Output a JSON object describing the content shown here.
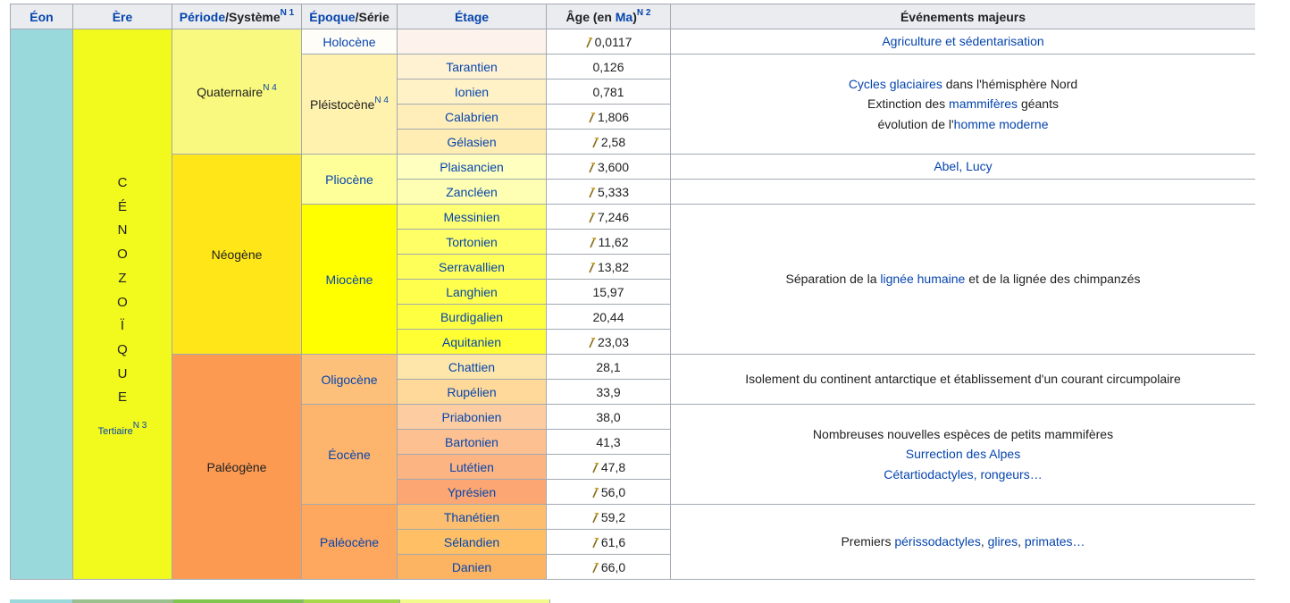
{
  "header": [
    [
      {
        "text": "Éon",
        "link": true
      }
    ],
    [
      {
        "text": "Ère",
        "link": true
      }
    ],
    [
      {
        "text": "Période",
        "link": true
      },
      {
        "text": "/Système"
      },
      {
        "text": "N 1",
        "sup": true,
        "link": true
      }
    ],
    [
      {
        "text": "Époque",
        "link": true
      },
      {
        "text": "/Série"
      }
    ],
    [
      {
        "text": "Étage",
        "link": true
      }
    ],
    [
      {
        "text": "Âge (en "
      },
      {
        "text": "Ma",
        "link": true
      },
      {
        "text": ")"
      },
      {
        "text": "N 2",
        "sup": true,
        "link": true
      }
    ],
    [
      {
        "text": "Événements majeurs"
      }
    ]
  ],
  "era": {
    "name": "CÉNOZOÏQUE",
    "note": "Tertiaire",
    "note_ref": "N 3",
    "color": "#f2f91d"
  },
  "periods": [
    {
      "name": "Quaternaire",
      "ref": "N 4",
      "rows": 5,
      "color": "#f9f97f"
    },
    {
      "name": "Néogène",
      "rows": 8,
      "color": "#ffe619"
    },
    {
      "name": "Paléogène",
      "rows": 9,
      "color": "#fd9a52"
    }
  ],
  "epochs": [
    {
      "name": "Holocène",
      "rows": 1,
      "color": "#fefdf8",
      "link": true
    },
    {
      "name": "Pléistocène",
      "ref": "N 4",
      "rows": 4,
      "color": "#fff2ae"
    },
    {
      "name": "Pliocène",
      "rows": 2,
      "color": "#ffff99",
      "link": true
    },
    {
      "name": "Miocène",
      "rows": 6,
      "color": "#ffff00",
      "link": true
    },
    {
      "name": "Oligocène",
      "rows": 2,
      "color": "#fdc07a",
      "link": true
    },
    {
      "name": "Éocène",
      "rows": 4,
      "color": "#fdb46c",
      "link": true
    },
    {
      "name": "Paléocène",
      "rows": 3,
      "color": "#fda75f",
      "link": true
    }
  ],
  "stages": [
    {
      "name": null,
      "age": "0,0117",
      "gssp": true,
      "color": "#fdf2ec"
    },
    {
      "name": "Tarantien",
      "age": "0,126",
      "gssp": false,
      "color": "#fff2d3"
    },
    {
      "name": "Ionien",
      "age": "0,781",
      "gssp": false,
      "color": "#fff2c7"
    },
    {
      "name": "Calabrien",
      "age": "1,806",
      "gssp": true,
      "color": "#ffeeba"
    },
    {
      "name": "Gélasien",
      "age": "2,58",
      "gssp": true,
      "color": "#ffedb3"
    },
    {
      "name": "Plaisancien",
      "age": "3,600",
      "gssp": true,
      "color": "#ffffbf"
    },
    {
      "name": "Zancléen",
      "age": "5,333",
      "gssp": true,
      "color": "#ffffb3"
    },
    {
      "name": "Messinien",
      "age": "7,246",
      "gssp": true,
      "color": "#ffff73"
    },
    {
      "name": "Tortonien",
      "age": "11,62",
      "gssp": true,
      "color": "#ffff66"
    },
    {
      "name": "Serravallien",
      "age": "13,82",
      "gssp": true,
      "color": "#ffff59"
    },
    {
      "name": "Langhien",
      "age": "15,97",
      "gssp": false,
      "color": "#ffff4d"
    },
    {
      "name": "Burdigalien",
      "age": "20,44",
      "gssp": false,
      "color": "#ffff41"
    },
    {
      "name": "Aquitanien",
      "age": "23,03",
      "gssp": true,
      "color": "#ffff33"
    },
    {
      "name": "Chattien",
      "age": "28,1",
      "gssp": false,
      "color": "#fee6aa"
    },
    {
      "name": "Rupélien",
      "age": "33,9",
      "gssp": false,
      "color": "#fed99a"
    },
    {
      "name": "Priabonien",
      "age": "38,0",
      "gssp": false,
      "color": "#fdcda1"
    },
    {
      "name": "Bartonien",
      "age": "41,3",
      "gssp": false,
      "color": "#fdc091"
    },
    {
      "name": "Lutétien",
      "age": "47,8",
      "gssp": true,
      "color": "#fcb482"
    },
    {
      "name": "Yprésien",
      "age": "56,0",
      "gssp": true,
      "color": "#fca773"
    },
    {
      "name": "Thanétien",
      "age": "59,2",
      "gssp": true,
      "color": "#fdbf6f"
    },
    {
      "name": "Sélandien",
      "age": "61,6",
      "gssp": true,
      "color": "#febf65"
    },
    {
      "name": "Danien",
      "age": "66,0",
      "gssp": true,
      "color": "#fdb462"
    }
  ],
  "events": [
    {
      "rows": 1,
      "lines": [
        [
          {
            "text": "Agriculture et sédentarisation",
            "link": true
          }
        ]
      ]
    },
    {
      "rows": 4,
      "lines": [
        [
          {
            "text": "Cycles glaciaires",
            "link": true
          },
          {
            "text": " dans l'hémisphère Nord"
          }
        ],
        [
          {
            "text": "Extinction des "
          },
          {
            "text": "mammifères",
            "link": true
          },
          {
            "text": " géants"
          }
        ],
        [
          {
            "text": "évolution de l'"
          },
          {
            "text": "homme moderne",
            "link": true
          }
        ]
      ]
    },
    {
      "rows": 1,
      "lines": [
        [
          {
            "text": "Abel, Lucy",
            "link": true
          }
        ]
      ]
    },
    {
      "rows": 1,
      "lines": []
    },
    {
      "rows": 6,
      "lines": [
        [
          {
            "text": "Séparation de la "
          },
          {
            "text": "lignée humaine",
            "link": true
          },
          {
            "text": " et de la lignée des chimpanzés"
          }
        ]
      ]
    },
    {
      "rows": 2,
      "lines": [
        [
          {
            "text": "Isolement du continent antarctique et établissement d'un courant circumpolaire"
          }
        ]
      ]
    },
    {
      "rows": 4,
      "lines": [
        [
          {
            "text": "Nombreuses nouvelles espèces de petits mammifères"
          }
        ],
        [
          {
            "text": "Surrection des Alpes",
            "link": true
          }
        ],
        [
          {
            "text": "Cétartiodactyles, rongeurs…",
            "link": true
          }
        ]
      ]
    },
    {
      "rows": 3,
      "lines": [
        [
          {
            "text": "Premiers "
          },
          {
            "text": "périssodactyles",
            "link": true
          },
          {
            "text": ", "
          },
          {
            "text": "glires",
            "link": true
          },
          {
            "text": ", "
          },
          {
            "text": "primates…",
            "link": true
          }
        ]
      ]
    }
  ]
}
